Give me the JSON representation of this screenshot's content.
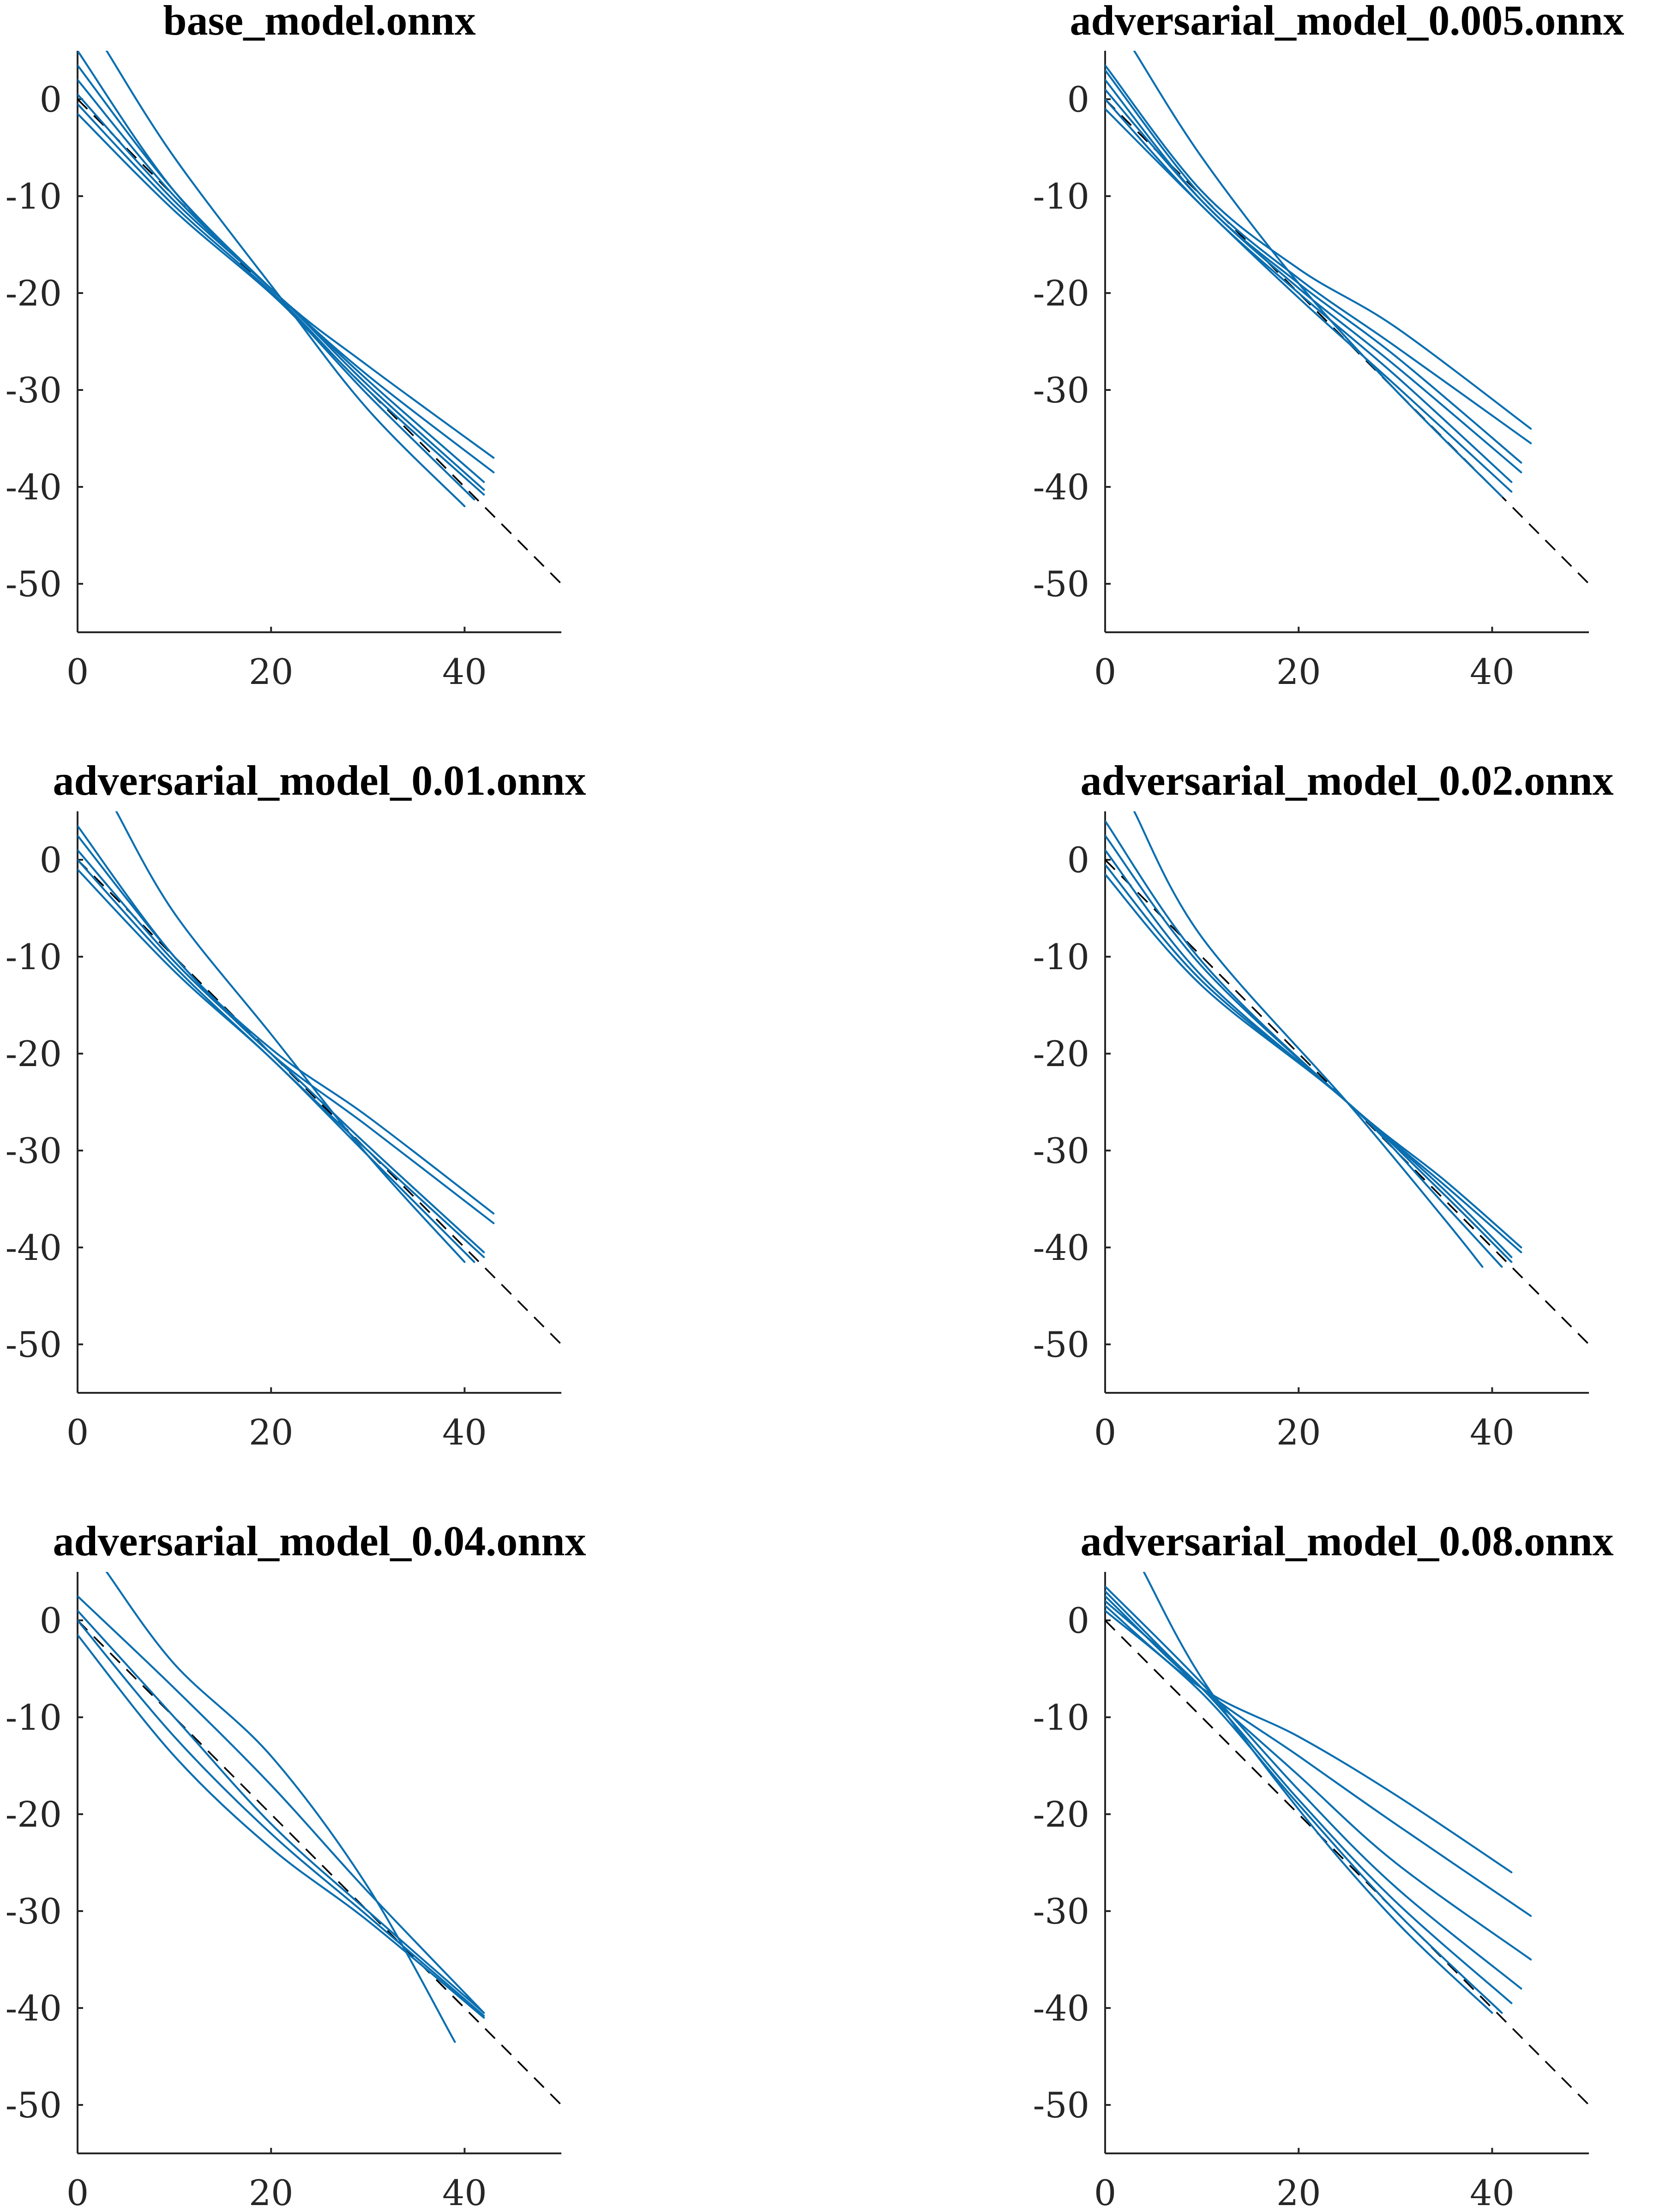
{
  "chart_data": [
    {
      "type": "line",
      "title": "base_model.onnx",
      "xlim": [
        0,
        50
      ],
      "ylim": [
        -55,
        5
      ],
      "xticks": [
        0,
        20,
        40
      ],
      "yticks": [
        0,
        -10,
        -20,
        -30,
        -40,
        -50
      ],
      "grid": false,
      "reference": {
        "style": "dashed",
        "color": "#000000",
        "x": [
          0,
          50
        ],
        "y": [
          0,
          -50
        ]
      },
      "series": [
        {
          "x": [
            0,
            10,
            21,
            30,
            43
          ],
          "y": [
            5,
            -9.5,
            -20.5,
            -27.5,
            -37
          ]
        },
        {
          "x": [
            0,
            10,
            21,
            30,
            43
          ],
          "y": [
            3.5,
            -9.5,
            -20.5,
            -28.5,
            -38.5
          ]
        },
        {
          "x": [
            0,
            10,
            21,
            30,
            42
          ],
          "y": [
            2,
            -10,
            -20.5,
            -29,
            -39.5
          ]
        },
        {
          "x": [
            0,
            10,
            21,
            30,
            42
          ],
          "y": [
            0.5,
            -10.5,
            -20.5,
            -29.5,
            -40.3
          ]
        },
        {
          "x": [
            0,
            10,
            21,
            30,
            42
          ],
          "y": [
            -0.5,
            -11,
            -20.8,
            -30,
            -40.8
          ]
        },
        {
          "x": [
            0,
            10,
            21,
            30,
            41
          ],
          "y": [
            -1.5,
            -11.5,
            -21,
            -30.5,
            -41.3
          ]
        },
        {
          "x": [
            3,
            10,
            21,
            30,
            40
          ],
          "y": [
            5,
            -6,
            -20.5,
            -32,
            -42
          ]
        }
      ]
    },
    {
      "type": "line",
      "title": "adversarial_model_0.005.onnx",
      "xlim": [
        0,
        50
      ],
      "ylim": [
        -55,
        5
      ],
      "xticks": [
        0,
        20,
        40
      ],
      "yticks": [
        0,
        -10,
        -20,
        -30,
        -40,
        -50
      ],
      "grid": false,
      "reference": {
        "style": "dashed",
        "color": "#000000",
        "x": [
          0,
          50
        ],
        "y": [
          0,
          -50
        ]
      },
      "series": [
        {
          "x": [
            0,
            10,
            20,
            30,
            44
          ],
          "y": [
            3.5,
            -9.5,
            -17.5,
            -23.5,
            -34
          ]
        },
        {
          "x": [
            0,
            10,
            20,
            30,
            44
          ],
          "y": [
            3,
            -10,
            -18.5,
            -25.5,
            -35.5
          ]
        },
        {
          "x": [
            0,
            10,
            20,
            30,
            43
          ],
          "y": [
            2,
            -10.5,
            -19,
            -26.5,
            -37.5
          ]
        },
        {
          "x": [
            0,
            10,
            20,
            30,
            43
          ],
          "y": [
            1,
            -10.5,
            -19.5,
            -27.5,
            -38.5
          ]
        },
        {
          "x": [
            0,
            10,
            20,
            30,
            42
          ],
          "y": [
            0,
            -11,
            -20,
            -28.5,
            -39.5
          ]
        },
        {
          "x": [
            0,
            10,
            20,
            30,
            42
          ],
          "y": [
            -1,
            -11,
            -20.5,
            -29.5,
            -40.5
          ]
        },
        {
          "x": [
            3,
            10,
            20,
            30,
            41
          ],
          "y": [
            5,
            -6,
            -19,
            -30,
            -41
          ]
        }
      ]
    },
    {
      "type": "line",
      "title": "adversarial_model_0.01.onnx",
      "xlim": [
        0,
        50
      ],
      "ylim": [
        -55,
        5
      ],
      "xticks": [
        0,
        20,
        40
      ],
      "yticks": [
        0,
        -10,
        -20,
        -30,
        -40,
        -50
      ],
      "grid": false,
      "reference": {
        "style": "dashed",
        "color": "#000000",
        "x": [
          0,
          50
        ],
        "y": [
          0,
          -50
        ]
      },
      "series": [
        {
          "x": [
            0,
            10,
            20,
            30,
            43
          ],
          "y": [
            3.5,
            -10,
            -19.5,
            -26.5,
            -36.5
          ]
        },
        {
          "x": [
            0,
            10,
            20,
            30,
            43
          ],
          "y": [
            2.5,
            -10,
            -20,
            -27.5,
            -37.5
          ]
        },
        {
          "x": [
            0,
            10,
            20,
            30,
            42
          ],
          "y": [
            1,
            -10.5,
            -20,
            -29.5,
            -40.5
          ]
        },
        {
          "x": [
            0,
            10,
            20,
            30,
            42
          ],
          "y": [
            0,
            -11,
            -20.5,
            -30,
            -41
          ]
        },
        {
          "x": [
            0,
            10,
            20,
            30,
            41
          ],
          "y": [
            -1,
            -11.5,
            -20.5,
            -30.5,
            -41.5
          ]
        },
        {
          "x": [
            4,
            10,
            20,
            30,
            40
          ],
          "y": [
            5,
            -5.5,
            -18,
            -30.5,
            -41.5
          ]
        }
      ]
    },
    {
      "type": "line",
      "title": "adversarial_model_0.02.onnx",
      "xlim": [
        0,
        50
      ],
      "ylim": [
        -55,
        5
      ],
      "xticks": [
        0,
        20,
        40
      ],
      "yticks": [
        0,
        -10,
        -20,
        -30,
        -40,
        -50
      ],
      "grid": false,
      "reference": {
        "style": "dashed",
        "color": "#000000",
        "x": [
          0,
          50
        ],
        "y": [
          0,
          -50
        ]
      },
      "series": [
        {
          "x": [
            0,
            10,
            25,
            35,
            43
          ],
          "y": [
            4,
            -10.5,
            -25,
            -33,
            -40
          ]
        },
        {
          "x": [
            0,
            10,
            25,
            35,
            43
          ],
          "y": [
            2.5,
            -11,
            -25,
            -33.5,
            -40.5
          ]
        },
        {
          "x": [
            0,
            10,
            25,
            35,
            42
          ],
          "y": [
            1,
            -12,
            -25,
            -34,
            -41
          ]
        },
        {
          "x": [
            0,
            10,
            25,
            35,
            42
          ],
          "y": [
            -0.5,
            -12.5,
            -25,
            -34.5,
            -41.5
          ]
        },
        {
          "x": [
            0,
            10,
            25,
            35,
            41
          ],
          "y": [
            -1.5,
            -13,
            -25,
            -35.5,
            -42
          ]
        },
        {
          "x": [
            3,
            10,
            25,
            35,
            39
          ],
          "y": [
            5,
            -8,
            -25,
            -37,
            -42
          ]
        }
      ]
    },
    {
      "type": "line",
      "title": "adversarial_model_0.04.onnx",
      "xlim": [
        0,
        50
      ],
      "ylim": [
        -55,
        5
      ],
      "xticks": [
        0,
        20,
        40
      ],
      "yticks": [
        0,
        -10,
        -20,
        -30,
        -40,
        -50
      ],
      "grid": false,
      "reference": {
        "style": "dashed",
        "color": "#000000",
        "x": [
          0,
          50
        ],
        "y": [
          0,
          -50
        ]
      },
      "series": [
        {
          "x": [
            3,
            10,
            20,
            30,
            39
          ],
          "y": [
            5,
            -4.5,
            -14,
            -27.5,
            -43.5
          ]
        },
        {
          "x": [
            0,
            10,
            20,
            30,
            42
          ],
          "y": [
            2.5,
            -7,
            -17,
            -28,
            -40.5
          ]
        },
        {
          "x": [
            0,
            10,
            20,
            30,
            42
          ],
          "y": [
            1,
            -10,
            -21,
            -30,
            -40.5
          ]
        },
        {
          "x": [
            0,
            10,
            20,
            30,
            42
          ],
          "y": [
            0,
            -12,
            -22,
            -30.5,
            -40.8
          ]
        },
        {
          "x": [
            0,
            10,
            20,
            30,
            42
          ],
          "y": [
            -1.5,
            -14,
            -23.5,
            -31,
            -41
          ]
        }
      ]
    },
    {
      "type": "line",
      "title": "adversarial_model_0.08.onnx",
      "xlim": [
        0,
        50
      ],
      "ylim": [
        -55,
        5
      ],
      "xticks": [
        0,
        20,
        40
      ],
      "yticks": [
        0,
        -10,
        -20,
        -30,
        -40,
        -50
      ],
      "grid": false,
      "reference": {
        "style": "dashed",
        "color": "#000000",
        "x": [
          0,
          50
        ],
        "y": [
          0,
          -50
        ]
      },
      "series": [
        {
          "x": [
            0,
            10,
            20,
            30,
            42
          ],
          "y": [
            1.5,
            -7,
            -12,
            -18,
            -26
          ]
        },
        {
          "x": [
            0,
            10,
            20,
            30,
            44
          ],
          "y": [
            2.5,
            -7,
            -14,
            -21,
            -30.5
          ]
        },
        {
          "x": [
            0,
            10,
            20,
            30,
            44
          ],
          "y": [
            3,
            -7,
            -16,
            -25,
            -35
          ]
        },
        {
          "x": [
            0,
            10,
            20,
            30,
            43
          ],
          "y": [
            3.5,
            -6.5,
            -17.5,
            -27.5,
            -38
          ]
        },
        {
          "x": [
            0,
            10,
            20,
            30,
            42
          ],
          "y": [
            2,
            -7,
            -18.5,
            -29,
            -39.5
          ]
        },
        {
          "x": [
            0,
            10,
            20,
            30,
            41
          ],
          "y": [
            1,
            -7.5,
            -19,
            -30,
            -40.5
          ]
        },
        {
          "x": [
            4,
            10,
            20,
            30,
            40
          ],
          "y": [
            5,
            -6,
            -19.5,
            -31,
            -40.5
          ]
        }
      ]
    }
  ]
}
